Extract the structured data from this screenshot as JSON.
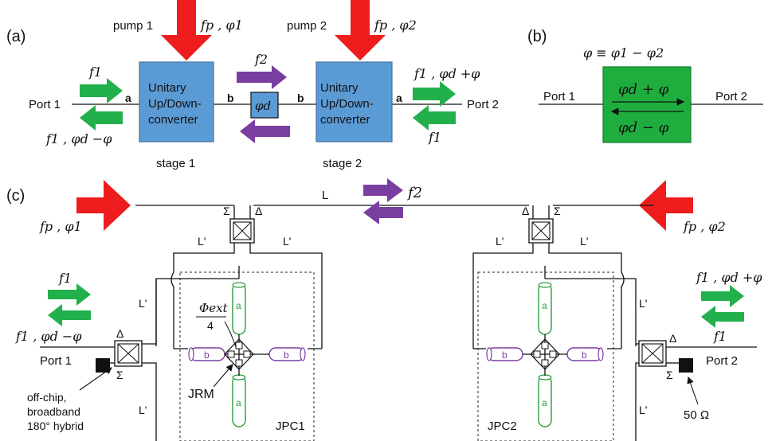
{
  "panel_a": {
    "label": "(a)",
    "pump1": "pump 1",
    "pump1_param": "fp , φ1",
    "pump2": "pump 2",
    "pump2_param": "fp , φ2",
    "f1_in": "f1",
    "f1_out": "f1 , φd −φ",
    "f2": "f2",
    "f1_right_out": "f1 , φd +φ",
    "f1_right_in": "f1",
    "port1": "Port 1",
    "port2": "Port 2",
    "converter1": [
      "Unitary",
      "Up/Down-",
      "converter"
    ],
    "converter2": [
      "Unitary",
      "Up/Down-",
      "converter"
    ],
    "stage1": "stage 1",
    "stage2": "stage 2",
    "phase_box": "φd",
    "port_a1": "a",
    "port_b1": "b",
    "port_b2": "b",
    "port_a2": "a"
  },
  "panel_b": {
    "label": "(b)",
    "equation": "φ ≡ φ1 − φ2",
    "port1": "Port 1",
    "port2": "Port 2",
    "forward": "φd + φ",
    "backward": "φd − φ"
  },
  "panel_c": {
    "label": "(c)",
    "pump_left": "fp , φ1",
    "pump_right": "fp , φ2",
    "f2": "f2",
    "L": "L",
    "Lp": "L'",
    "sigma": "Σ",
    "delta": "Δ",
    "phi_ext_num": "Φext",
    "phi_ext_den": "4",
    "f1_left": "f1",
    "f1_left_out": "f1 , φd −φ",
    "f1_right_out": "f1 , φd +φ",
    "f1_right_in": "f1",
    "port1": "Port 1",
    "port2": "Port 2",
    "hybrid_note": [
      "off-chip,",
      "broadband",
      "180° hybrid"
    ],
    "jrm": "JRM",
    "jpc1": "JPC1",
    "jpc2": "JPC2",
    "load": "50 Ω",
    "res_a": "a",
    "res_b": "b"
  },
  "colors": {
    "pump_red": "#ee1c1c",
    "signal_green": "#22b04c",
    "idler_purple": "#7a3ea0",
    "converter_blue": "#5b9bd5",
    "box_green": "#1fae3e"
  }
}
